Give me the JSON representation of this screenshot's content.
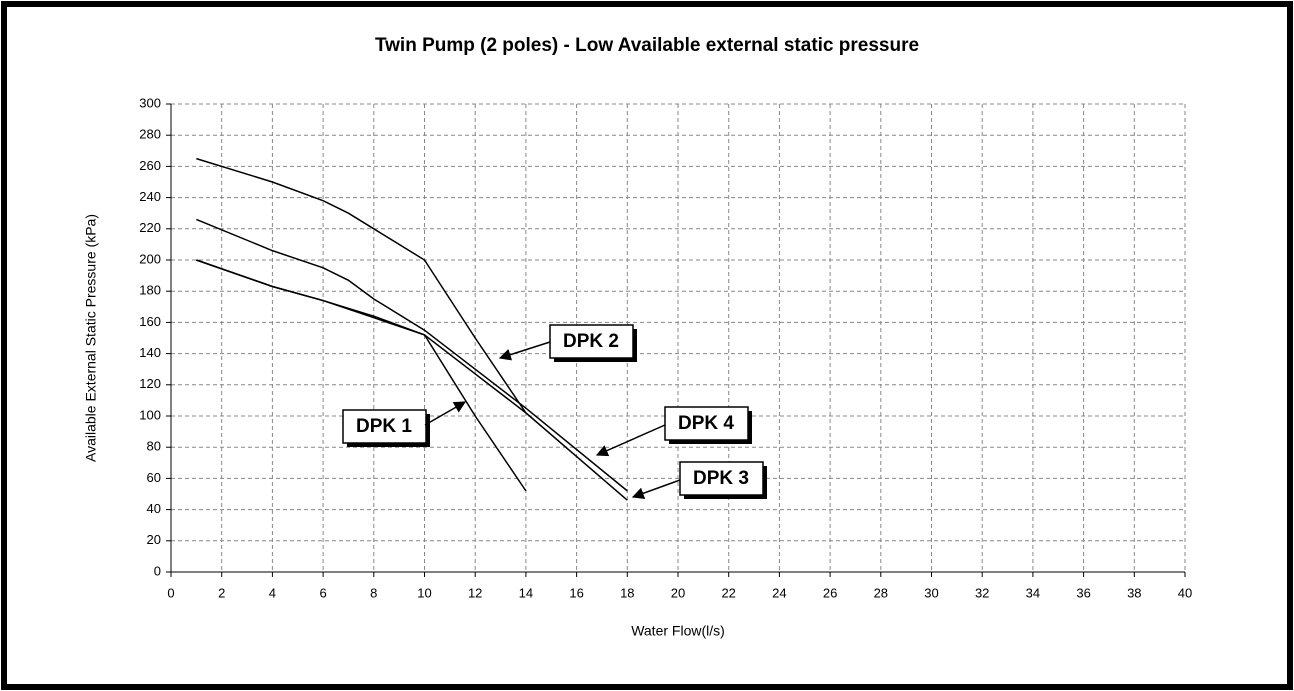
{
  "chart_data": {
    "type": "line",
    "title": "Twin Pump (2 poles) - Low Available external static pressure",
    "x_label": "Water Flow(l/s)",
    "y_label": "Available External Static Pressure (kPa)",
    "xlim": [
      0,
      40
    ],
    "xticks": [
      0,
      2,
      4,
      6,
      8,
      10,
      12,
      14,
      16,
      18,
      20,
      22,
      24,
      26,
      28,
      30,
      32,
      34,
      36,
      38,
      40
    ],
    "ylim": [
      0,
      300
    ],
    "yticks": [
      0,
      20,
      40,
      60,
      80,
      100,
      120,
      140,
      160,
      180,
      200,
      220,
      240,
      260,
      280,
      300
    ],
    "grid": true,
    "series": [
      {
        "name": "DPK 1",
        "color": "#000000",
        "x": [
          1,
          4,
          6,
          8,
          10,
          12,
          14
        ],
        "values": [
          200,
          183,
          174,
          163,
          152,
          100,
          52
        ]
      },
      {
        "name": "DPK 2",
        "color": "#000000",
        "x": [
          1,
          4,
          6,
          7,
          8,
          10,
          12,
          14
        ],
        "values": [
          265,
          250,
          238,
          230,
          220,
          200,
          150,
          102
        ]
      },
      {
        "name": "DPK 3",
        "color": "#000000",
        "x": [
          1,
          4,
          6,
          8,
          10,
          14,
          18
        ],
        "values": [
          200,
          183,
          174,
          164,
          152,
          102,
          46
        ]
      },
      {
        "name": "DPK 4",
        "color": "#000000",
        "x": [
          1,
          4,
          6,
          7,
          8,
          10,
          14,
          18
        ],
        "values": [
          226,
          206,
          195,
          187,
          175,
          155,
          105,
          52
        ]
      }
    ]
  }
}
